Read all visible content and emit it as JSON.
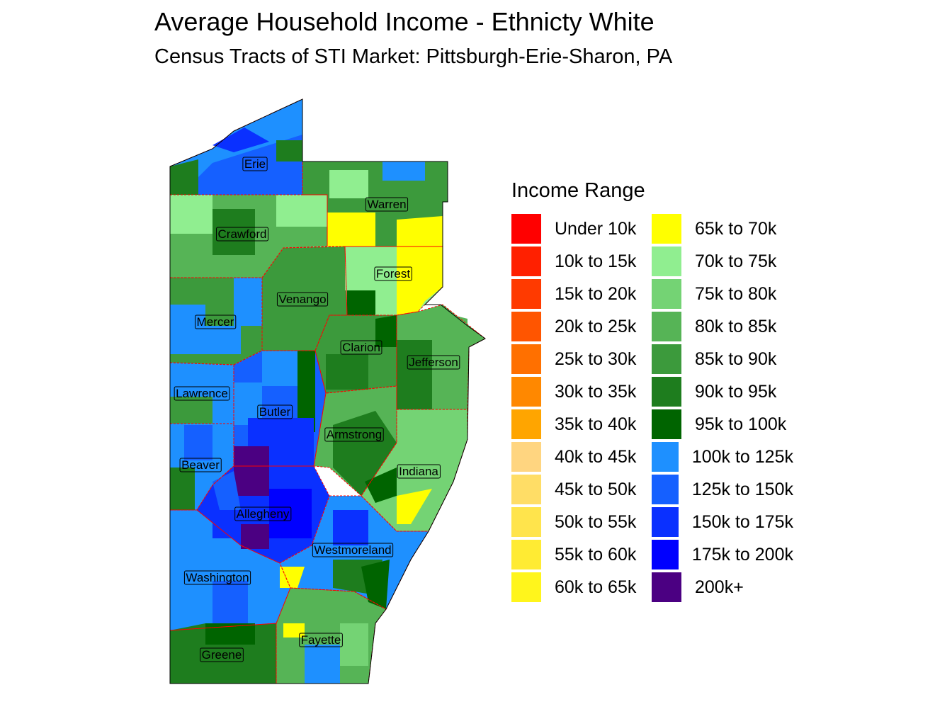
{
  "title": "Average Household Income - Ethnicty White",
  "subtitle": "Census Tracts of STI Market: Pittsburgh-Erie-Sharon, PA",
  "legend": {
    "title": "Income Range",
    "items": [
      {
        "label": "Under 10k",
        "color": "#FF0000"
      },
      {
        "label": "10k to 15k",
        "color": "#FF2000"
      },
      {
        "label": "15k to 20k",
        "color": "#FF3A00"
      },
      {
        "label": "20k to 25k",
        "color": "#FF5500"
      },
      {
        "label": "25k to 30k",
        "color": "#FF7000"
      },
      {
        "label": "30k to 35k",
        "color": "#FF8800"
      },
      {
        "label": "35k to 40k",
        "color": "#FFA500"
      },
      {
        "label": "40k to 45k",
        "color": "#FFD580"
      },
      {
        "label": "45k to 50k",
        "color": "#FFDD66"
      },
      {
        "label": "50k to 55k",
        "color": "#FFE44C"
      },
      {
        "label": "55k to 60k",
        "color": "#FFEB33"
      },
      {
        "label": "60k to 65k",
        "color": "#FFF51C"
      },
      {
        "label": "65k to 70k",
        "color": "#FFFF00"
      },
      {
        "label": "70k to 75k",
        "color": "#90EE90"
      },
      {
        "label": "75k to 80k",
        "color": "#74D374"
      },
      {
        "label": "80k to 85k",
        "color": "#56B456"
      },
      {
        "label": "85k to 90k",
        "color": "#3C9A3C"
      },
      {
        "label": "90k to 95k",
        "color": "#1E7D1E"
      },
      {
        "label": "95k to 100k",
        "color": "#006400"
      },
      {
        "label": "100k to 125k",
        "color": "#1E90FF"
      },
      {
        "label": "125k to 150k",
        "color": "#1560FF"
      },
      {
        "label": "150k to 175k",
        "color": "#0A30FF"
      },
      {
        "label": "175k to 200k",
        "color": "#0000FF"
      },
      {
        "label": "200k+",
        "color": "#4B0082"
      }
    ]
  },
  "counties": [
    {
      "name": "Erie",
      "fill": "#1E90FF"
    },
    {
      "name": "Warren",
      "fill": "#3C9A3C"
    },
    {
      "name": "Crawford",
      "fill": "#56B456"
    },
    {
      "name": "Forest",
      "fill": "#90EE90"
    },
    {
      "name": "Venango",
      "fill": "#3C9A3C"
    },
    {
      "name": "Mercer",
      "fill": "#3C9A3C"
    },
    {
      "name": "Lawrence",
      "fill": "#1E90FF"
    },
    {
      "name": "Clarion",
      "fill": "#3C9A3C"
    },
    {
      "name": "Jefferson",
      "fill": "#56B456"
    },
    {
      "name": "Butler",
      "fill": "#1560FF"
    },
    {
      "name": "Armstrong",
      "fill": "#56B456"
    },
    {
      "name": "Indiana",
      "fill": "#74D374"
    },
    {
      "name": "Beaver",
      "fill": "#1E90FF"
    },
    {
      "name": "Allegheny",
      "fill": "#0A30FF"
    },
    {
      "name": "Westmoreland",
      "fill": "#1E90FF"
    },
    {
      "name": "Washington",
      "fill": "#1E90FF"
    },
    {
      "name": "Greene",
      "fill": "#1E7D1E"
    },
    {
      "name": "Fayette",
      "fill": "#56B456"
    }
  ],
  "county_border_color": "#FF0000"
}
